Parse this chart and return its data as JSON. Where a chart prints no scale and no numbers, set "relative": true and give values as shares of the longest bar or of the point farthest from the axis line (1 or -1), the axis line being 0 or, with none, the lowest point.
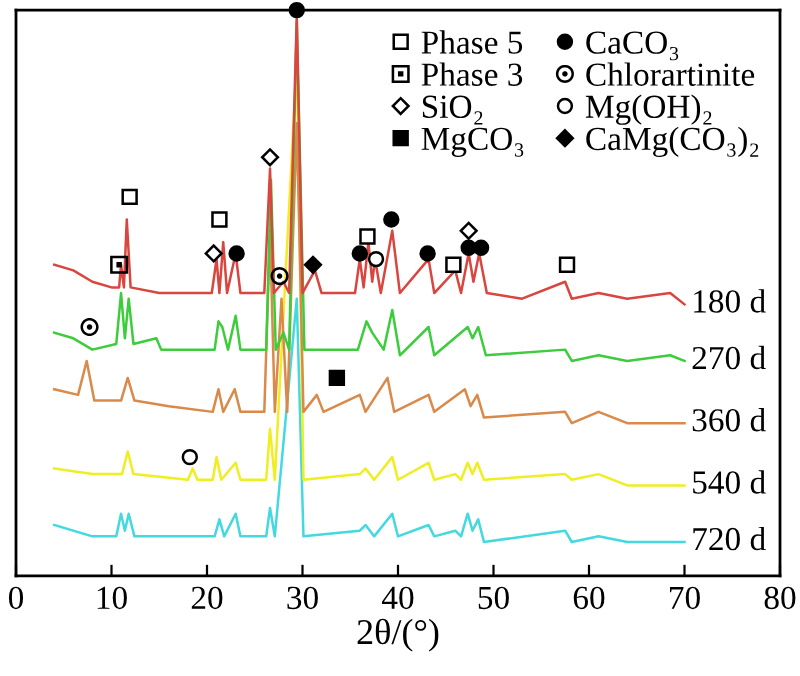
{
  "chart_data": {
    "type": "line",
    "relative": true,
    "xlabel": "2θ/(°)",
    "xlim": [
      0,
      80
    ],
    "xticks": [
      0,
      10,
      20,
      30,
      40,
      50,
      60,
      70,
      80
    ],
    "tick_labels": "x",
    "grid": false,
    "legend": "top right",
    "series": [
      {
        "name": "180 d",
        "color": "#d9453f",
        "x": [
          4.0,
          6.0,
          8.0,
          10.0,
          10.8,
          11.0,
          11.3,
          11.6,
          12.0,
          15.0,
          18.0,
          20.5,
          21.0,
          21.3,
          21.7,
          22.1,
          23.0,
          23.5,
          26.0,
          26.6,
          27.0,
          28.0,
          28.6,
          29.4,
          30.0,
          31.3,
          32.0,
          35.5,
          36.0,
          36.4,
          36.9,
          37.3,
          37.6,
          38.2,
          39.4,
          40.2,
          43.2,
          43.8,
          46.0,
          46.6,
          47.4,
          47.9,
          48.5,
          49.3,
          53.0,
          57.5,
          58.2,
          61.0,
          64.0,
          68.5,
          70.0
        ],
        "values": [
          0.55,
          0.54,
          0.52,
          0.51,
          0.51,
          0.55,
          0.51,
          0.63,
          0.51,
          0.5,
          0.5,
          0.5,
          0.56,
          0.5,
          0.59,
          0.5,
          0.57,
          0.5,
          0.5,
          0.72,
          0.5,
          0.52,
          0.5,
          0.99,
          0.5,
          0.54,
          0.5,
          0.5,
          0.56,
          0.51,
          0.59,
          0.52,
          0.56,
          0.5,
          0.61,
          0.5,
          0.56,
          0.5,
          0.54,
          0.5,
          0.57,
          0.52,
          0.57,
          0.5,
          0.49,
          0.52,
          0.49,
          0.5,
          0.49,
          0.5,
          0.48
        ]
      },
      {
        "name": "270 d",
        "color": "#3ccc3c",
        "x": [
          4.0,
          6.0,
          8.0,
          10.5,
          11.0,
          11.4,
          11.8,
          12.3,
          14.7,
          15.2,
          20.8,
          21.2,
          21.6,
          22.2,
          23.0,
          23.5,
          26.2,
          26.7,
          27.2,
          28.0,
          28.6,
          29.4,
          30.2,
          35.8,
          36.7,
          37.3,
          38.5,
          39.4,
          40.2,
          43.2,
          43.8,
          47.3,
          47.8,
          48.4,
          49.2,
          57.5,
          58.2,
          61.0,
          64.0,
          68.5,
          70.0
        ],
        "values": [
          0.43,
          0.42,
          0.4,
          0.41,
          0.5,
          0.42,
          0.49,
          0.41,
          0.42,
          0.4,
          0.4,
          0.45,
          0.44,
          0.4,
          0.46,
          0.4,
          0.4,
          0.7,
          0.4,
          0.43,
          0.4,
          0.98,
          0.4,
          0.4,
          0.45,
          0.43,
          0.4,
          0.47,
          0.39,
          0.44,
          0.39,
          0.44,
          0.42,
          0.44,
          0.39,
          0.4,
          0.38,
          0.39,
          0.38,
          0.39,
          0.38
        ]
      },
      {
        "name": "360 d",
        "color": "#d98a4a",
        "x": [
          4.0,
          6.5,
          7.4,
          8.2,
          11.0,
          11.7,
          12.4,
          16.0,
          20.6,
          21.2,
          21.7,
          22.9,
          23.5,
          26.0,
          26.6,
          27.1,
          27.8,
          28.4,
          29.4,
          30.1,
          31.5,
          32.2,
          36.0,
          36.6,
          38.9,
          39.6,
          43.2,
          43.8,
          47.0,
          47.6,
          48.3,
          49.0,
          57.5,
          58.2,
          61.0,
          64.0,
          70.0
        ],
        "values": [
          0.33,
          0.32,
          0.38,
          0.31,
          0.31,
          0.35,
          0.31,
          0.3,
          0.29,
          0.33,
          0.29,
          0.33,
          0.29,
          0.29,
          0.61,
          0.29,
          0.49,
          0.29,
          0.8,
          0.29,
          0.32,
          0.29,
          0.32,
          0.29,
          0.35,
          0.29,
          0.32,
          0.29,
          0.33,
          0.3,
          0.32,
          0.28,
          0.29,
          0.27,
          0.29,
          0.27,
          0.27
        ]
      },
      {
        "name": "540 d",
        "color": "#eeee22",
        "x": [
          4.0,
          8.0,
          11.1,
          11.7,
          12.3,
          18.0,
          18.5,
          19.0,
          20.6,
          21.0,
          21.5,
          23.0,
          23.5,
          26.2,
          26.6,
          27.1,
          29.4,
          30.1,
          36.0,
          36.6,
          37.5,
          39.4,
          40.0,
          43.2,
          43.8,
          46.0,
          46.6,
          47.3,
          47.8,
          48.3,
          49.0,
          57.5,
          58.2,
          61.0,
          64.0,
          70.0
        ],
        "values": [
          0.19,
          0.18,
          0.18,
          0.22,
          0.18,
          0.17,
          0.19,
          0.17,
          0.17,
          0.21,
          0.17,
          0.2,
          0.17,
          0.17,
          0.26,
          0.17,
          0.91,
          0.17,
          0.18,
          0.19,
          0.17,
          0.21,
          0.17,
          0.2,
          0.17,
          0.18,
          0.17,
          0.2,
          0.18,
          0.2,
          0.17,
          0.18,
          0.17,
          0.18,
          0.16,
          0.16
        ]
      },
      {
        "name": "720 d",
        "color": "#44d8e0",
        "x": [
          4.0,
          8.0,
          10.5,
          11.0,
          11.4,
          11.8,
          12.4,
          20.8,
          21.3,
          21.8,
          23.0,
          23.5,
          26.2,
          26.6,
          27.1,
          29.4,
          30.1,
          36.0,
          36.6,
          37.5,
          39.4,
          40.0,
          43.2,
          43.8,
          46.0,
          46.6,
          47.3,
          47.8,
          48.4,
          49.0,
          57.5,
          58.2,
          61.0,
          64.0,
          70.0
        ],
        "values": [
          0.09,
          0.07,
          0.07,
          0.11,
          0.08,
          0.11,
          0.07,
          0.07,
          0.1,
          0.07,
          0.11,
          0.07,
          0.07,
          0.12,
          0.07,
          0.49,
          0.07,
          0.08,
          0.09,
          0.07,
          0.11,
          0.07,
          0.09,
          0.07,
          0.08,
          0.07,
          0.11,
          0.08,
          0.1,
          0.06,
          0.08,
          0.06,
          0.07,
          0.06,
          0.06
        ]
      },
      {
        "name": "Phase 5",
        "type": "scatter",
        "marker": "square",
        "color": "#ffffff",
        "x": [
          11.9,
          21.3,
          36.8,
          45.8,
          57.7
        ],
        "values": [
          0.67,
          0.63,
          0.6,
          0.55,
          0.55
        ]
      },
      {
        "name": "Phase 3",
        "type": "scatter",
        "marker": "square-dot",
        "color": "#000000",
        "x": [
          10.8
        ],
        "values": [
          0.55
        ]
      },
      {
        "name": "SiO₂",
        "type": "scatter",
        "marker": "diamond",
        "color": "#ffffff",
        "x": [
          20.7,
          26.6,
          47.4
        ],
        "values": [
          0.57,
          0.74,
          0.61
        ]
      },
      {
        "name": "MgCO₃",
        "type": "scatter",
        "marker": "square",
        "color": "#000000",
        "x": [
          33.6
        ],
        "values": [
          0.35
        ]
      },
      {
        "name": "CaCO₃",
        "type": "scatter",
        "marker": "circle",
        "color": "#000000",
        "x": [
          23.1,
          29.4,
          36.0,
          39.3,
          43.1,
          47.4,
          48.7
        ],
        "values": [
          0.57,
          1.0,
          0.57,
          0.63,
          0.57,
          0.58,
          0.58
        ]
      },
      {
        "name": "Chlorartinite",
        "type": "scatter",
        "marker": "circle-dot",
        "color": "#000000",
        "x": [
          7.7,
          27.6
        ],
        "values": [
          0.44,
          0.53
        ]
      },
      {
        "name": "Mg(OH)₂",
        "type": "scatter",
        "marker": "circle",
        "color": "#ffffff",
        "x": [
          18.2,
          37.7
        ],
        "values": [
          0.21,
          0.56
        ]
      },
      {
        "name": "CaMg(CO₃)₂",
        "type": "scatter",
        "marker": "diamond",
        "color": "#000000",
        "x": [
          31.1
        ],
        "values": [
          0.55
        ]
      }
    ]
  }
}
